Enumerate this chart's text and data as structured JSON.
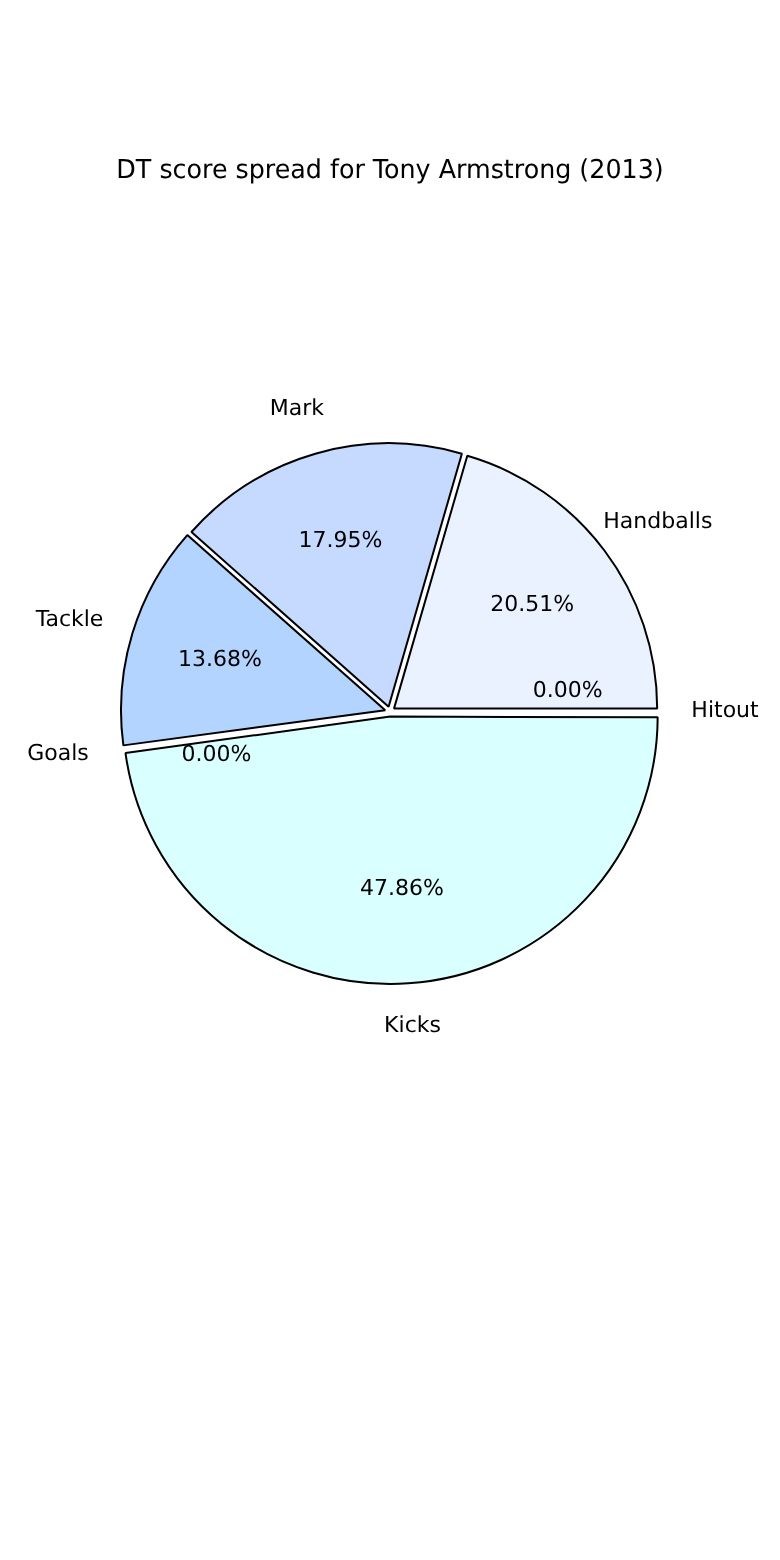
{
  "chart_data": {
    "type": "pie",
    "title": "DT score spread for Tony Armstrong (2013)",
    "categories": [
      "Hitout",
      "Kicks",
      "Goals",
      "Tackle",
      "Mark",
      "Handballs"
    ],
    "values": [
      0.0,
      47.86,
      0.0,
      13.68,
      17.95,
      20.51
    ],
    "colors": [
      "#e0e0ff",
      "#d9ffff",
      "#a6c8ff",
      "#b3d4ff",
      "#c6d9ff",
      "#eaf1ff"
    ],
    "value_labels": [
      "0.00%",
      "47.86%",
      "0.00%",
      "13.68%",
      "17.95%",
      "20.51%"
    ],
    "legend": false
  }
}
